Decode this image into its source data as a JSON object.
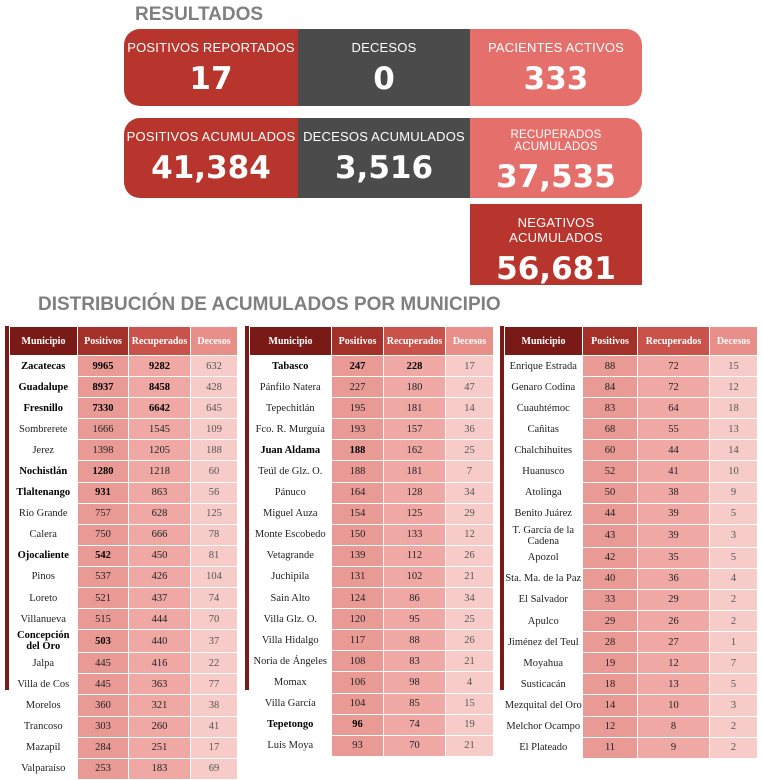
{
  "resultados_title": "RESULTADOS",
  "distribucion_title": "DISTRIBUCIÓN DE ACUMULADOS POR MUNICIPIO",
  "colors": {
    "dark_red": "#b8352e",
    "gray": "#4b4b4b",
    "light_red": "#e5706b",
    "title_gray": "#7f7f7f"
  },
  "boxes": {
    "positivos_reportados": {
      "label": "POSITIVOS REPORTADOS",
      "value": "17"
    },
    "decesos": {
      "label": "DECESOS",
      "value": "0"
    },
    "pacientes_activos": {
      "label": "PACIENTES ACTIVOS",
      "value": "333"
    },
    "positivos_acumulados": {
      "label": "POSITIVOS ACUMULADOS",
      "value": "41,384"
    },
    "decesos_acumulados": {
      "label": "DECESOS ACUMULADOS",
      "value": "3,516"
    },
    "recuperados_acumulados": {
      "label": "RECUPERADOS ACUMULADOS",
      "value": "37,535"
    },
    "negativos_acumulados": {
      "label": "NEGATIVOS ACUMULADOS",
      "value": "56,681"
    }
  },
  "table_headers": [
    "Municipio",
    "Positivos",
    "Recuperados",
    "Decesos"
  ],
  "tables": [
    [
      [
        "Zacatecas",
        "9965",
        "9282",
        "632"
      ],
      [
        "Guadalupe",
        "8937",
        "8458",
        "428"
      ],
      [
        "Fresnillo",
        "7330",
        "6642",
        "645"
      ],
      [
        "Sombrerete",
        "1666",
        "1545",
        "109"
      ],
      [
        "Jerez",
        "1398",
        "1205",
        "188"
      ],
      [
        "Nochistlán",
        "1280",
        "1218",
        "60"
      ],
      [
        "Tlaltenango",
        "931",
        "863",
        "56"
      ],
      [
        "Río Grande",
        "757",
        "628",
        "125"
      ],
      [
        "Calera",
        "750",
        "666",
        "78"
      ],
      [
        "Ojocaliente",
        "542",
        "450",
        "81"
      ],
      [
        "Pinos",
        "537",
        "426",
        "104"
      ],
      [
        "Loreto",
        "521",
        "437",
        "74"
      ],
      [
        "Villanueva",
        "515",
        "444",
        "70"
      ],
      [
        "Concepción del Oro",
        "503",
        "440",
        "37"
      ],
      [
        "Jalpa",
        "445",
        "416",
        "22"
      ],
      [
        "Villa de Cos",
        "445",
        "363",
        "77"
      ],
      [
        "Morelos",
        "360",
        "321",
        "38"
      ],
      [
        "Trancoso",
        "303",
        "260",
        "41"
      ],
      [
        "Mazapil",
        "284",
        "251",
        "17"
      ],
      [
        "Valparaíso",
        "253",
        "183",
        "69"
      ]
    ],
    [
      [
        "Tabasco",
        "247",
        "228",
        "17"
      ],
      [
        "Pánfilo Natera",
        "227",
        "180",
        "47"
      ],
      [
        "Tepechitlán",
        "195",
        "181",
        "14"
      ],
      [
        "Fco. R. Murguía",
        "193",
        "157",
        "36"
      ],
      [
        "Juan Aldama",
        "188",
        "162",
        "25"
      ],
      [
        "Teúl de Glz. O.",
        "188",
        "181",
        "7"
      ],
      [
        "Pánuco",
        "164",
        "128",
        "34"
      ],
      [
        "Miguel Auza",
        "154",
        "125",
        "29"
      ],
      [
        "Monte Escobedo",
        "150",
        "133",
        "12"
      ],
      [
        "Vetagrande",
        "139",
        "112",
        "26"
      ],
      [
        "Juchipila",
        "131",
        "102",
        "21"
      ],
      [
        "Sain Alto",
        "124",
        "86",
        "34"
      ],
      [
        "Villa Glz. O.",
        "120",
        "95",
        "25"
      ],
      [
        "Villa Hidalgo",
        "117",
        "88",
        "26"
      ],
      [
        "Noria de Ángeles",
        "108",
        "83",
        "21"
      ],
      [
        "Momax",
        "106",
        "98",
        "4"
      ],
      [
        "Villa García",
        "104",
        "85",
        "15"
      ],
      [
        "Tepetongo",
        "96",
        "74",
        "19"
      ],
      [
        "Luis Moya",
        "93",
        "70",
        "21"
      ]
    ],
    [
      [
        "Enrique Estrada",
        "88",
        "72",
        "15"
      ],
      [
        "Genaro Codina",
        "84",
        "72",
        "12"
      ],
      [
        "Cuauhtémoc",
        "83",
        "64",
        "18"
      ],
      [
        "Cañitas",
        "68",
        "55",
        "13"
      ],
      [
        "Chalchihuites",
        "60",
        "44",
        "14"
      ],
      [
        "Huanusco",
        "52",
        "41",
        "10"
      ],
      [
        "Atolinga",
        "50",
        "38",
        "9"
      ],
      [
        "Benito Juárez",
        "44",
        "39",
        "5"
      ],
      [
        "T. García de la Cadena",
        "43",
        "39",
        "3"
      ],
      [
        "Apozol",
        "42",
        "35",
        "5"
      ],
      [
        "Sta. Ma. de la Paz",
        "40",
        "36",
        "4"
      ],
      [
        "El Salvador",
        "33",
        "29",
        "2"
      ],
      [
        "Apulco",
        "29",
        "26",
        "2"
      ],
      [
        "Jiménez del Teul",
        "28",
        "27",
        "1"
      ],
      [
        "Moyahua",
        "19",
        "12",
        "7"
      ],
      [
        "Susticacán",
        "18",
        "13",
        "5"
      ],
      [
        "Mezquital del Oro",
        "14",
        "10",
        "3"
      ],
      [
        "Melchor Ocampo",
        "12",
        "8",
        "2"
      ],
      [
        "El Plateado",
        "11",
        "9",
        "2"
      ]
    ]
  ]
}
